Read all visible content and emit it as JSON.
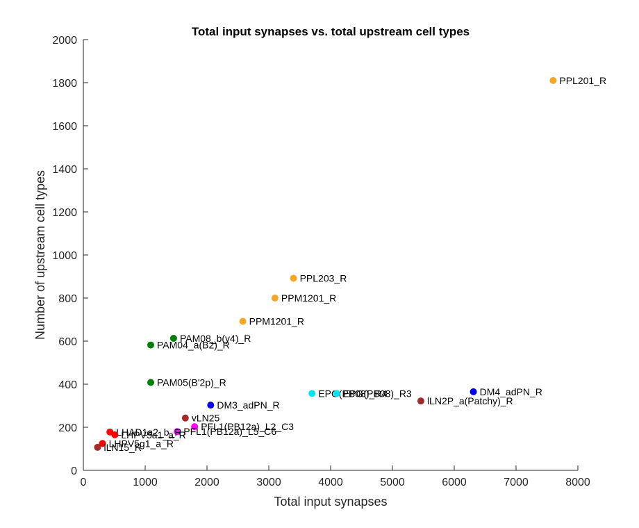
{
  "chart_data": {
    "type": "scatter",
    "title": "Total input synapses vs. total upstream cell types",
    "xlabel": "Total input synapses",
    "ylabel": "Number of upstream cell types",
    "xlim": [
      0,
      8000
    ],
    "ylim": [
      0,
      2000
    ],
    "xticks": [
      0,
      1000,
      2000,
      3000,
      4000,
      5000,
      6000,
      7000,
      8000
    ],
    "yticks": [
      0,
      200,
      400,
      600,
      800,
      1000,
      1200,
      1400,
      1600,
      1800,
      2000
    ],
    "grid": false,
    "points": [
      {
        "label": "PPL201_R",
        "x": 7600,
        "y": 1810,
        "color": "#f5a623"
      },
      {
        "label": "PPL203_R",
        "x": 3400,
        "y": 892,
        "color": "#f5a623"
      },
      {
        "label": "PPM1201_R",
        "x": 3100,
        "y": 800,
        "color": "#f5a623"
      },
      {
        "label": "PPM1201_R",
        "x": 2580,
        "y": 692,
        "color": "#f5a623"
      },
      {
        "label": "PAM08_b(y4)_R",
        "x": 1460,
        "y": 613,
        "color": "#008000"
      },
      {
        "label": "PAM04_a(B2)_R",
        "x": 1090,
        "y": 582,
        "color": "#008000"
      },
      {
        "label": "PAM05(B'2p)_R",
        "x": 1090,
        "y": 408,
        "color": "#008000"
      },
      {
        "label": "EPG(PB08)_R4",
        "x": 3700,
        "y": 357,
        "color": "#00e5ee"
      },
      {
        "label": "EPG(PB08)_R3",
        "x": 4100,
        "y": 357,
        "color": "#00e5ee"
      },
      {
        "label": "DM4_adPN_R",
        "x": 6310,
        "y": 365,
        "color": "#0000ee"
      },
      {
        "label": "lLN2P_a(Patchy)_R",
        "x": 5460,
        "y": 322,
        "color": "#a52a2a"
      },
      {
        "label": "DM3_adPN_R",
        "x": 2060,
        "y": 303,
        "color": "#0000ee"
      },
      {
        "label": "vLN25",
        "x": 1650,
        "y": 243,
        "color": "#a52a2a"
      },
      {
        "label": "PFL1(PB12a)_L2_C3",
        "x": 1800,
        "y": 203,
        "color": "#ff00ff"
      },
      {
        "label": "PFL1(PB12a)_L5_C6",
        "x": 1520,
        "y": 180,
        "color": "#ff00ff"
      },
      {
        "label": "LHAD1a2_b_R",
        "x": 430,
        "y": 178,
        "color": "#ff0000"
      },
      {
        "label": "LHPV5a1_a_R",
        "x": 510,
        "y": 165,
        "color": "#ff0000"
      },
      {
        "label": "LHPV5g1_a_R",
        "x": 310,
        "y": 125,
        "color": "#ff0000"
      },
      {
        "label": "lLN15_R",
        "x": 230,
        "y": 107,
        "color": "#a52a2a"
      }
    ]
  }
}
